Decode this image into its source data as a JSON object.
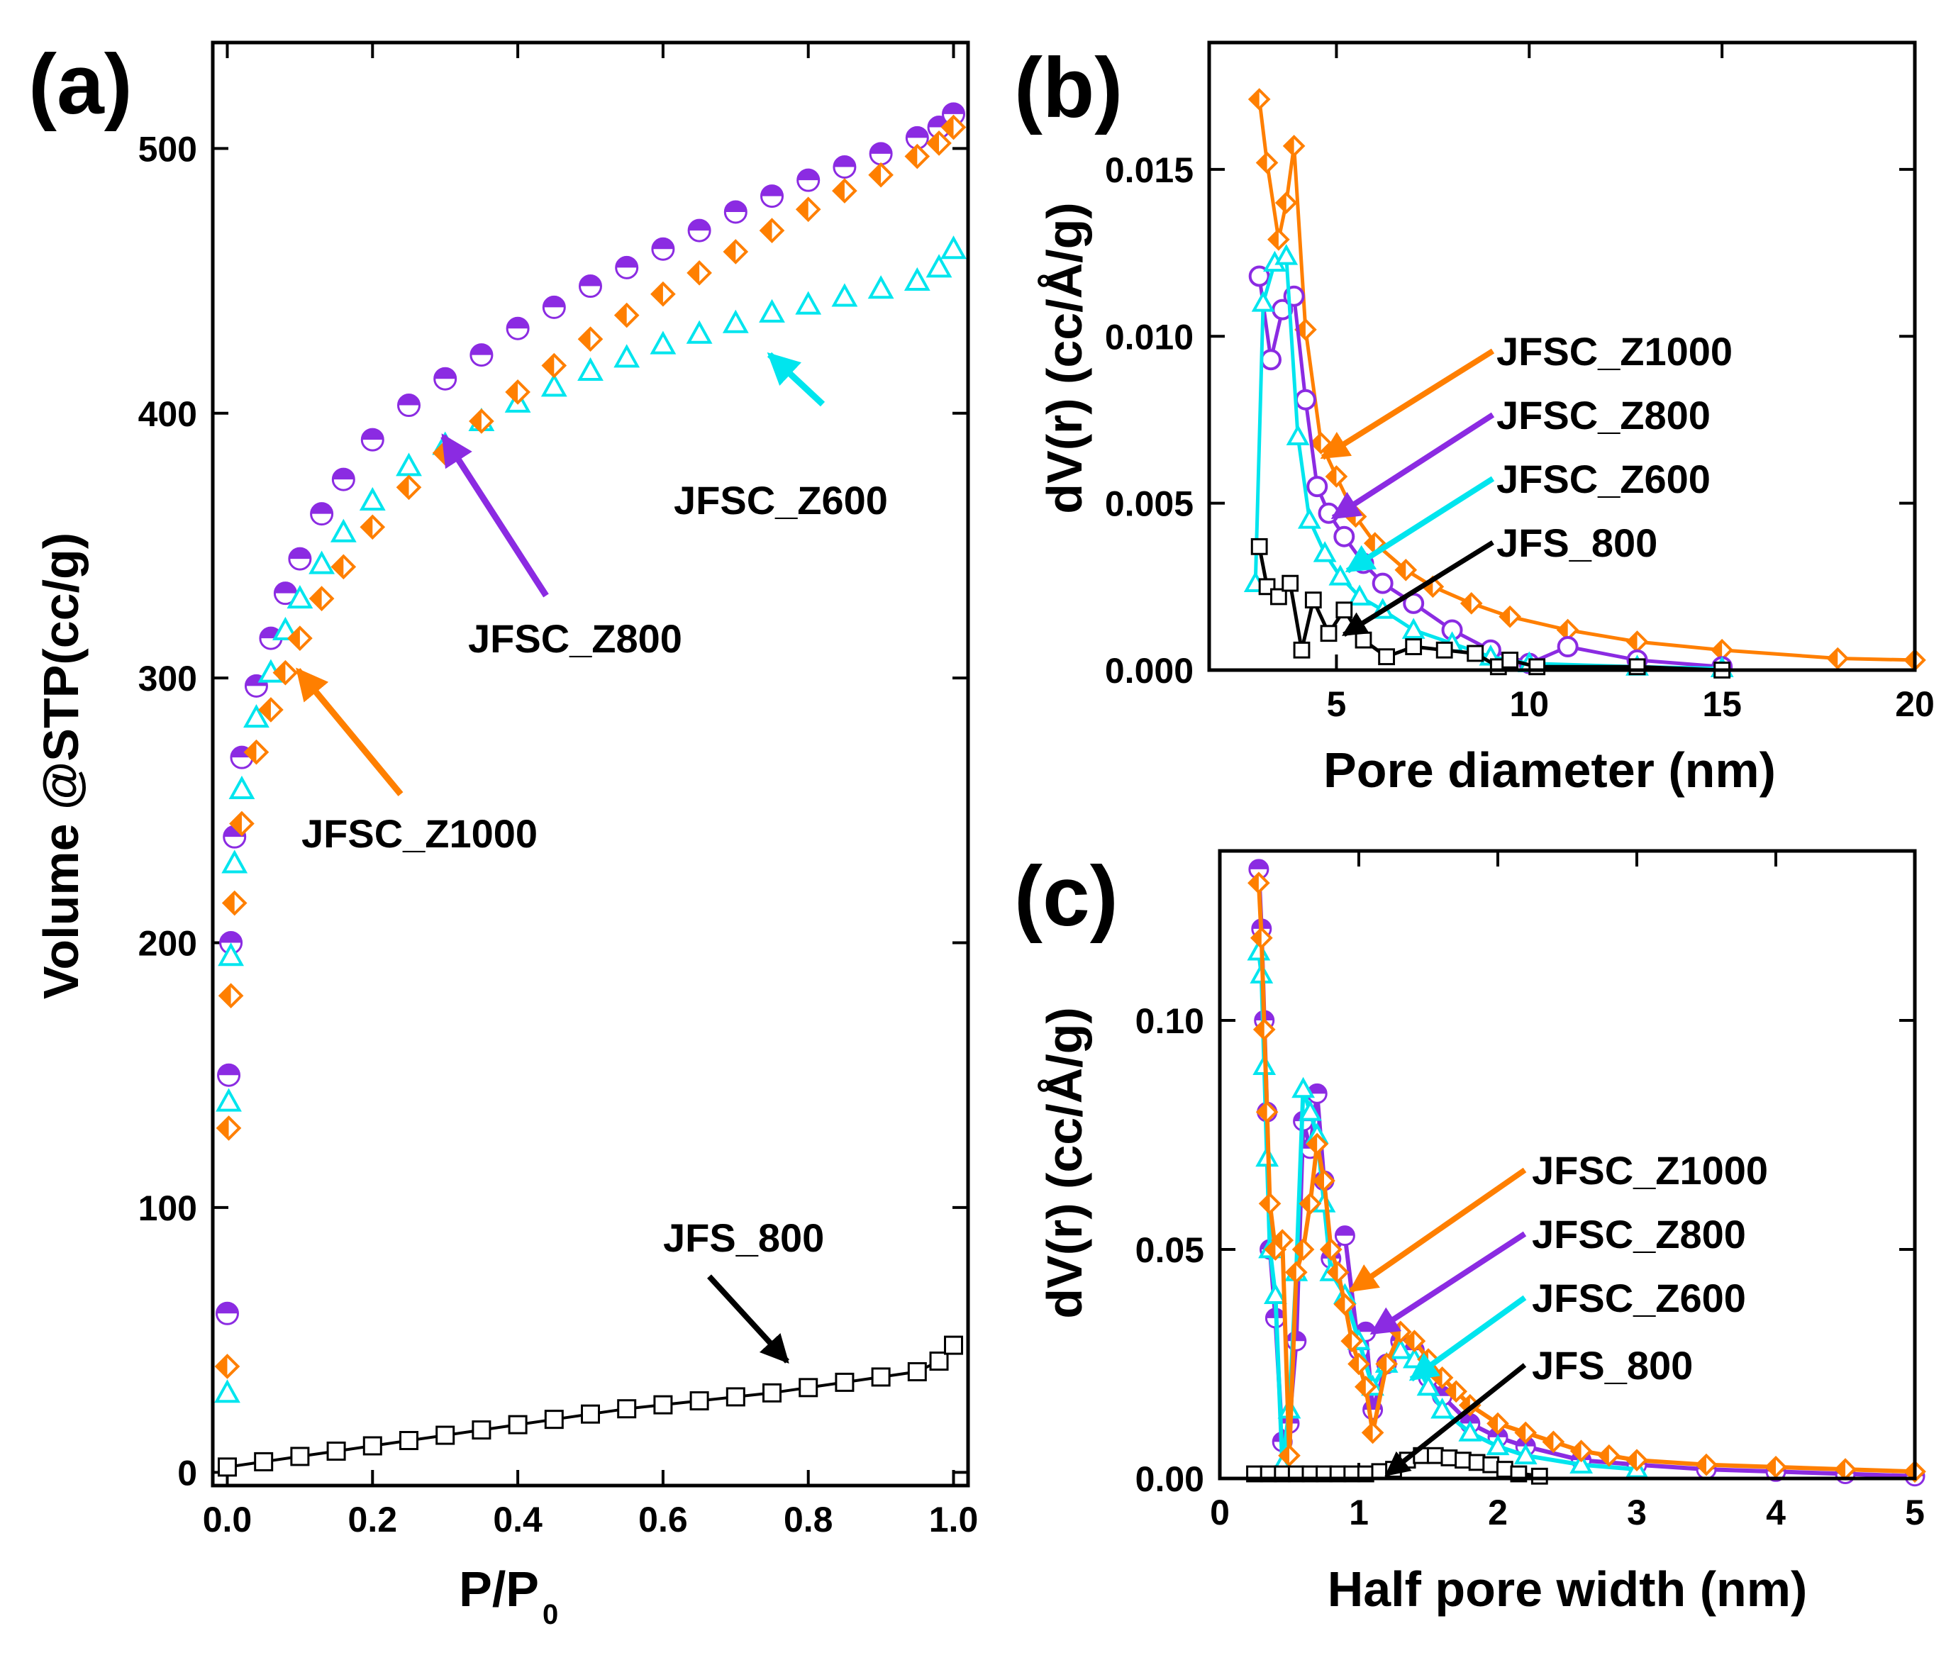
{
  "chart_data": [
    {
      "panel": "(a)",
      "type": "scatter",
      "xlabel": "P/P0",
      "xlabel_main": "P/P",
      "xlabel_sub": "0",
      "ylabel": "Volume @STP(cc/g)",
      "xlim": [
        -0.02,
        1.02
      ],
      "ylim": [
        -5,
        540
      ],
      "xticks": [
        0.0,
        0.2,
        0.4,
        0.6,
        0.8,
        1.0
      ],
      "xtick_labels": [
        "0.0",
        "0.2",
        "0.4",
        "0.6",
        "0.8",
        "1.0"
      ],
      "yticks": [
        0,
        100,
        200,
        300,
        400,
        500
      ],
      "ytick_labels": [
        "0",
        "100",
        "200",
        "300",
        "400",
        "500"
      ],
      "series": [
        {
          "name": "JFSC_Z800",
          "color": "#8B2BE2",
          "marker": "half-circle",
          "x": [
            0.0,
            0.002,
            0.005,
            0.01,
            0.02,
            0.04,
            0.06,
            0.08,
            0.1,
            0.13,
            0.16,
            0.2,
            0.25,
            0.3,
            0.35,
            0.4,
            0.45,
            0.5,
            0.55,
            0.6,
            0.65,
            0.7,
            0.75,
            0.8,
            0.85,
            0.9,
            0.95,
            0.98,
            1.0
          ],
          "y": [
            60,
            150,
            200,
            240,
            270,
            297,
            315,
            332,
            345,
            362,
            375,
            390,
            403,
            413,
            422,
            432,
            440,
            448,
            455,
            462,
            469,
            476,
            482,
            488,
            493,
            498,
            504,
            508,
            513
          ]
        },
        {
          "name": "JFSC_Z600",
          "color": "#00E5EE",
          "marker": "triangle",
          "x": [
            0.0,
            0.002,
            0.005,
            0.01,
            0.02,
            0.04,
            0.06,
            0.08,
            0.1,
            0.13,
            0.16,
            0.2,
            0.25,
            0.3,
            0.35,
            0.4,
            0.45,
            0.5,
            0.55,
            0.6,
            0.65,
            0.7,
            0.75,
            0.8,
            0.85,
            0.9,
            0.95,
            0.98,
            1.0
          ],
          "y": [
            30,
            140,
            195,
            230,
            258,
            285,
            302,
            318,
            330,
            343,
            355,
            367,
            380,
            388,
            397,
            404,
            410,
            416,
            421,
            426,
            430,
            434,
            438,
            441,
            444,
            447,
            450,
            455,
            462
          ]
        },
        {
          "name": "JFSC_Z1000",
          "color": "#FF7F00",
          "marker": "diamond",
          "x": [
            0.0,
            0.002,
            0.005,
            0.01,
            0.02,
            0.04,
            0.06,
            0.08,
            0.1,
            0.13,
            0.16,
            0.2,
            0.25,
            0.3,
            0.35,
            0.4,
            0.45,
            0.5,
            0.55,
            0.6,
            0.65,
            0.7,
            0.75,
            0.8,
            0.85,
            0.9,
            0.95,
            0.98,
            1.0
          ],
          "y": [
            40,
            130,
            180,
            215,
            245,
            272,
            288,
            302,
            315,
            330,
            342,
            357,
            372,
            385,
            397,
            408,
            418,
            428,
            437,
            445,
            453,
            461,
            469,
            477,
            484,
            490,
            497,
            502,
            508
          ]
        },
        {
          "name": "JFS_800",
          "color": "#000000",
          "marker": "square",
          "x": [
            0.0,
            0.05,
            0.1,
            0.15,
            0.2,
            0.25,
            0.3,
            0.35,
            0.4,
            0.45,
            0.5,
            0.55,
            0.6,
            0.65,
            0.7,
            0.75,
            0.8,
            0.85,
            0.9,
            0.95,
            0.98,
            1.0
          ],
          "y": [
            2,
            4,
            6,
            8,
            10,
            12,
            14,
            16,
            18,
            20,
            22,
            24,
            25.5,
            27,
            28.5,
            30,
            32,
            34,
            36,
            38,
            42,
            48
          ]
        }
      ],
      "annotations": [
        "JFSC_Z600",
        "JFSC_Z800",
        "JFSC_Z1000",
        "JFS_800"
      ]
    },
    {
      "panel": "(b)",
      "type": "line",
      "xlabel": "Pore diameter (nm)",
      "ylabel": "dV(r)  (cc/Å/g)",
      "xlim": [
        1.7,
        20
      ],
      "ylim": [
        0,
        0.0188
      ],
      "xticks": [
        5,
        10,
        15,
        20
      ],
      "xtick_labels": [
        "5",
        "10",
        "15",
        "20"
      ],
      "yticks": [
        0.0,
        0.005,
        0.01,
        0.015
      ],
      "ytick_labels": [
        "0.000",
        "0.005",
        "0.010",
        "0.015"
      ],
      "series": [
        {
          "name": "JFSC_Z1000",
          "color": "#FF7F00",
          "marker": "diamond",
          "x": [
            3.0,
            3.2,
            3.5,
            3.7,
            3.9,
            4.2,
            4.6,
            5.0,
            5.5,
            6.0,
            6.8,
            7.5,
            8.5,
            9.5,
            11,
            12.8,
            15,
            18,
            20
          ],
          "y": [
            0.0171,
            0.0152,
            0.0129,
            0.014,
            0.0157,
            0.0102,
            0.0068,
            0.0058,
            0.0046,
            0.0038,
            0.003,
            0.0025,
            0.002,
            0.0016,
            0.0012,
            0.00085,
            0.0006,
            0.00035,
            0.0003
          ]
        },
        {
          "name": "JFSC_Z800",
          "color": "#8B2BE2",
          "marker": "circle",
          "x": [
            3.0,
            3.3,
            3.6,
            3.9,
            4.2,
            4.5,
            4.8,
            5.2,
            5.7,
            6.2,
            7.0,
            8.0,
            9.0,
            10.0,
            11.0,
            12.8,
            15
          ],
          "y": [
            0.0118,
            0.0093,
            0.0108,
            0.0112,
            0.0081,
            0.0055,
            0.0047,
            0.004,
            0.0032,
            0.0026,
            0.002,
            0.0012,
            0.0006,
            0.0002,
            0.0007,
            0.0003,
            0.0001
          ]
        },
        {
          "name": "JFSC_Z600",
          "color": "#00E5EE",
          "marker": "triangle",
          "x": [
            2.9,
            3.1,
            3.4,
            3.7,
            4.0,
            4.3,
            4.7,
            5.1,
            5.6,
            6.2,
            7.0,
            8.0,
            9.0,
            10.0,
            12.8,
            15
          ],
          "y": [
            0.0026,
            0.011,
            0.0122,
            0.0124,
            0.007,
            0.0045,
            0.0035,
            0.0028,
            0.0022,
            0.0018,
            0.0012,
            0.0008,
            0.0004,
            0.0002,
            0.0001,
            5e-05
          ]
        },
        {
          "name": "JFS_800",
          "color": "#000000",
          "marker": "square",
          "x": [
            3.0,
            3.2,
            3.5,
            3.8,
            4.1,
            4.4,
            4.8,
            5.2,
            5.7,
            6.3,
            7.0,
            7.8,
            8.6,
            9.2,
            9.5,
            10.2,
            12.8,
            15
          ],
          "y": [
            0.0037,
            0.0025,
            0.0022,
            0.0026,
            0.0006,
            0.0021,
            0.0011,
            0.0018,
            0.0009,
            0.0004,
            0.0007,
            0.0006,
            0.0005,
            0.0001,
            0.0003,
            0.0001,
            0.0001,
            0.0
          ]
        }
      ],
      "annotations": [
        "JFSC_Z1000",
        "JFSC_Z800",
        "JFSC_Z600",
        "JFS_800"
      ]
    },
    {
      "panel": "(c)",
      "type": "line",
      "xlabel": "Half pore width (nm)",
      "ylabel": "dV(r)  (cc/Å/g)",
      "xlim": [
        0,
        5
      ],
      "ylim": [
        0,
        0.137
      ],
      "xticks": [
        0,
        1,
        2,
        3,
        4,
        5
      ],
      "xtick_labels": [
        "0",
        "1",
        "2",
        "3",
        "4",
        "5"
      ],
      "yticks": [
        0.0,
        0.05,
        0.1
      ],
      "ytick_labels": [
        "0.00",
        "0.05",
        "0.10"
      ],
      "series": [
        {
          "name": "JFSC_Z800",
          "color": "#8B2BE2",
          "marker": "half-circle",
          "x": [
            0.28,
            0.3,
            0.32,
            0.34,
            0.36,
            0.4,
            0.45,
            0.5,
            0.55,
            0.6,
            0.65,
            0.7,
            0.75,
            0.8,
            0.9,
            1.0,
            1.05,
            1.1,
            1.2,
            1.3,
            1.4,
            1.5,
            1.6,
            1.8,
            2.0,
            2.2,
            2.6,
            3.0,
            3.5,
            4.0,
            4.5,
            5.0
          ],
          "y": [
            0.133,
            0.12,
            0.1,
            0.08,
            0.05,
            0.035,
            0.008,
            0.012,
            0.03,
            0.078,
            0.072,
            0.084,
            0.065,
            0.048,
            0.053,
            0.028,
            0.032,
            0.015,
            0.025,
            0.03,
            0.028,
            0.022,
            0.018,
            0.012,
            0.009,
            0.007,
            0.004,
            0.003,
            0.002,
            0.0015,
            0.001,
            0.0005
          ]
        },
        {
          "name": "JFSC_Z600",
          "color": "#00E5EE",
          "marker": "triangle",
          "x": [
            0.28,
            0.3,
            0.32,
            0.34,
            0.36,
            0.4,
            0.45,
            0.5,
            0.55,
            0.6,
            0.65,
            0.7,
            0.75,
            0.8,
            0.9,
            1.0,
            1.1,
            1.2,
            1.3,
            1.4,
            1.5,
            1.6,
            1.8,
            2.0,
            2.2,
            2.6,
            3.0
          ],
          "y": [
            0.115,
            0.11,
            0.09,
            0.07,
            0.05,
            0.04,
            0.003,
            0.015,
            0.045,
            0.085,
            0.08,
            0.075,
            0.06,
            0.045,
            0.04,
            0.03,
            0.02,
            0.025,
            0.028,
            0.026,
            0.02,
            0.015,
            0.01,
            0.007,
            0.005,
            0.003,
            0.002
          ]
        },
        {
          "name": "JFSC_Z1000",
          "color": "#FF7F00",
          "marker": "diamond",
          "x": [
            0.28,
            0.3,
            0.32,
            0.34,
            0.36,
            0.4,
            0.45,
            0.5,
            0.55,
            0.6,
            0.65,
            0.7,
            0.75,
            0.8,
            0.85,
            0.9,
            0.95,
            1.0,
            1.05,
            1.1,
            1.2,
            1.3,
            1.4,
            1.5,
            1.6,
            1.7,
            1.8,
            2.0,
            2.2,
            2.4,
            2.6,
            2.8,
            3.0,
            3.5,
            4.0,
            4.5,
            5.0
          ],
          "y": [
            0.13,
            0.118,
            0.098,
            0.08,
            0.06,
            0.05,
            0.052,
            0.005,
            0.045,
            0.05,
            0.06,
            0.073,
            0.065,
            0.05,
            0.045,
            0.038,
            0.03,
            0.025,
            0.02,
            0.01,
            0.025,
            0.032,
            0.03,
            0.026,
            0.022,
            0.019,
            0.016,
            0.012,
            0.01,
            0.008,
            0.006,
            0.005,
            0.004,
            0.003,
            0.0025,
            0.002,
            0.0015
          ]
        },
        {
          "name": "JFS_800",
          "color": "#000000",
          "marker": "square",
          "x": [
            0.25,
            0.35,
            0.45,
            0.55,
            0.65,
            0.75,
            0.85,
            0.95,
            1.05,
            1.15,
            1.25,
            1.35,
            1.45,
            1.55,
            1.65,
            1.75,
            1.85,
            1.95,
            2.05,
            2.15,
            2.3
          ],
          "y": [
            0.001,
            0.001,
            0.001,
            0.001,
            0.001,
            0.001,
            0.001,
            0.001,
            0.001,
            0.0015,
            0.002,
            0.004,
            0.005,
            0.005,
            0.0045,
            0.004,
            0.0035,
            0.003,
            0.002,
            0.001,
            0.0005
          ]
        }
      ],
      "annotations": [
        "JFSC_Z1000",
        "JFSC_Z800",
        "JFSC_Z600",
        "JFS_800"
      ]
    }
  ]
}
